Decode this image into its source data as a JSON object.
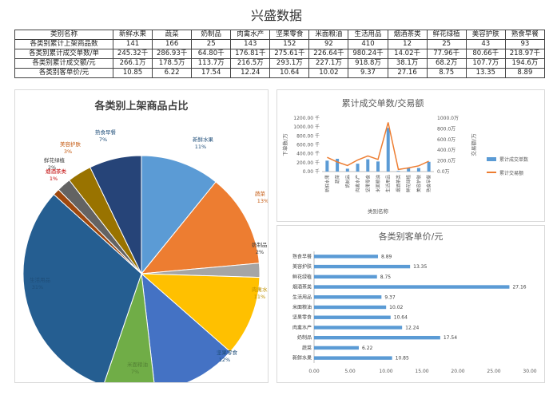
{
  "page_title": "兴盛数据",
  "table": {
    "header_label": "类别名称",
    "categories": [
      "新鲜水果",
      "蔬菜",
      "奶制品",
      "肉禽水产",
      "坚果零食",
      "米面粮油",
      "生活用品",
      "烟酒茶类",
      "鲜花绿植",
      "美容护肤",
      "熟食早餐"
    ],
    "rows": [
      {
        "label": "各类别累计上架商品数",
        "values": [
          "141",
          "166",
          "25",
          "143",
          "152",
          "92",
          "410",
          "12",
          "25",
          "43",
          "93"
        ]
      },
      {
        "label": "各类别累计成交单数/单",
        "values": [
          "245.32千",
          "286.93千",
          "64.80千",
          "176.81千",
          "275.61千",
          "226.64千",
          "980.24千",
          "14.02千",
          "77.96千",
          "80.66千",
          "218.97千"
        ]
      },
      {
        "label": "各类别累计成交额/元",
        "values": [
          "266.1万",
          "178.5万",
          "113.7万",
          "216.5万",
          "293.1万",
          "227.1万",
          "918.8万",
          "38.1万",
          "68.2万",
          "107.7万",
          "194.6万"
        ]
      },
      {
        "label": "各类别客单价/元",
        "values": [
          "10.85",
          "6.22",
          "17.54",
          "12.24",
          "10.64",
          "10.02",
          "9.37",
          "27.16",
          "8.75",
          "13.35",
          "8.89"
        ]
      }
    ]
  },
  "chart_data": [
    {
      "type": "pie",
      "title": "各类别上架商品占比",
      "slices": [
        {
          "label": "新鲜水果",
          "value": 141,
          "pct_label": "11%",
          "color": "#5b9bd5"
        },
        {
          "label": "蔬菜",
          "value": 166,
          "pct_label": "13%",
          "color": "#ed7d31"
        },
        {
          "label": "奶制品",
          "value": 25,
          "pct_label": "2%",
          "color": "#a5a5a5"
        },
        {
          "label": "肉禽水产",
          "value": 143,
          "pct_label": "11%",
          "color": "#ffc000"
        },
        {
          "label": "坚果零食",
          "value": 152,
          "pct_label": "12%",
          "color": "#4472c4"
        },
        {
          "label": "米面粮油",
          "value": 92,
          "pct_label": "7%",
          "color": "#70ad47"
        },
        {
          "label": "生活用品",
          "value": 410,
          "pct_label": "31%",
          "color": "#255e91"
        },
        {
          "label": "烟酒茶类",
          "value": 12,
          "pct_label": "1%",
          "color": "#9e480e"
        },
        {
          "label": "鲜花绿植",
          "value": 25,
          "pct_label": "2%",
          "color": "#636363"
        },
        {
          "label": "美容护肤",
          "value": 43,
          "pct_label": "3%",
          "color": "#997300"
        },
        {
          "label": "熟食早餐",
          "value": 93,
          "pct_label": "7%",
          "color": "#264478"
        }
      ]
    },
    {
      "type": "bar+line",
      "title": "累计成交单数/交易额",
      "categories": [
        "新鲜水果",
        "蔬菜",
        "奶制品",
        "肉禽水产",
        "坚果零食",
        "米面粮油",
        "生活用品",
        "烟酒茶类",
        "鲜花绿植",
        "美容护肤",
        "熟食早餐"
      ],
      "xlabel": "类别名称",
      "ylabel_left": "下单数/万",
      "ylabel_right": "交易额/万",
      "left_ticks": [
        "0.00 千",
        "200.00 千",
        "400.00 千",
        "600.00 千",
        "800.00 千",
        "1000.00 千",
        "1200.00 千"
      ],
      "right_ticks": [
        "0.0万",
        "200.0万",
        "400.0万",
        "600.0万",
        "800.0万",
        "1000.0万"
      ],
      "ylim_left": [
        0,
        1200
      ],
      "ylim_right": [
        0,
        1000
      ],
      "series": [
        {
          "name": "累计成交单数",
          "color": "#5b9bd5",
          "values": [
            245.32,
            286.93,
            64.8,
            176.81,
            275.61,
            226.64,
            980.24,
            14.02,
            77.96,
            80.66,
            218.97
          ]
        },
        {
          "name": "累计交易额",
          "color": "#ed7d31",
          "values": [
            266.1,
            178.5,
            113.7,
            216.5,
            293.1,
            227.1,
            918.8,
            38.1,
            68.2,
            107.7,
            194.6
          ]
        }
      ],
      "legend_position": "right"
    },
    {
      "type": "bar",
      "orientation": "horizontal",
      "title": "各类别客单价/元",
      "categories": [
        "新鲜水果",
        "蔬菜",
        "奶制品",
        "肉禽水产",
        "坚果零食",
        "米面粮油",
        "生活用品",
        "烟酒茶类",
        "鲜花绿植",
        "美容护肤",
        "熟食早餐"
      ],
      "values": [
        10.85,
        6.22,
        17.54,
        12.24,
        10.64,
        10.02,
        9.37,
        27.16,
        8.75,
        13.35,
        8.89
      ],
      "value_labels": [
        "10.85",
        "6.22",
        "17.54",
        "12.24",
        "10.64",
        "10.02",
        "9.37",
        "27.16",
        "8.75",
        "13.35",
        "8.89"
      ],
      "xlim": [
        0,
        30
      ],
      "x_ticks": [
        "0.00",
        "5.00",
        "10.00",
        "15.00",
        "20.00",
        "25.00",
        "30.00"
      ],
      "color": "#5b9bd5"
    }
  ]
}
